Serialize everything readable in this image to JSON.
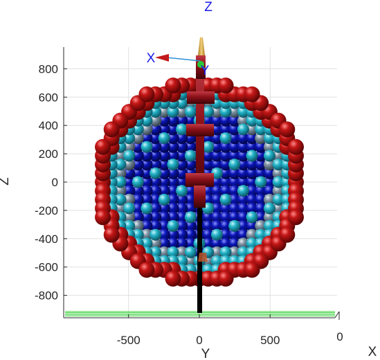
{
  "chart_data": {
    "type": "scatter",
    "view": "3d-projection",
    "title": "Z",
    "xlabel": "Y",
    "ylabel": "Z",
    "depth_label": "X",
    "depth_tick": "0",
    "x_ticks": [
      "-500",
      "0",
      "500"
    ],
    "y_ticks": [
      "800",
      "600",
      "400",
      "200",
      "0",
      "-200",
      "-400",
      "-600",
      "-800"
    ],
    "x_tick_values": [
      -500,
      0,
      500
    ],
    "y_tick_values": [
      800,
      600,
      400,
      200,
      0,
      -200,
      -400,
      -600,
      -800
    ],
    "xlim": [
      -950,
      950
    ],
    "ylim": [
      -950,
      950
    ],
    "grid": true,
    "sphere_pitch": 62,
    "tube_radius": 740,
    "sphere_layers": [
      {
        "name": "",
        "color": "#b40d0d",
        "region": "outer shell"
      },
      {
        "name": "",
        "color": "#23b3c8",
        "region": "cyan ring"
      },
      {
        "name": "",
        "color": "#7a8fa0",
        "region": "grey ring"
      },
      {
        "name": "",
        "color": "#0a14b4",
        "region": "blue core"
      }
    ],
    "frame_axes": [
      {
        "name": "X",
        "color": "#1a1ae6"
      },
      {
        "name": "Y",
        "color": "#1a1ae6"
      }
    ],
    "colors": {
      "red": "#b40d0d",
      "cyan": "#23b3c8",
      "grey": "#7a8fa0",
      "blue": "#0a14b4",
      "shaft": "#000000",
      "bracket": "#7a0f14",
      "ground": "#3fd13f",
      "grid": "#e0e0e0",
      "axis": "#262626",
      "label_blue": "#1a1ae6"
    }
  }
}
